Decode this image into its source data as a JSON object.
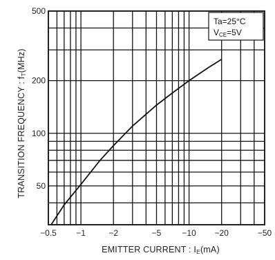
{
  "chart_data": {
    "type": "line",
    "xscale": "log",
    "yscale": "log",
    "xlim": [
      -0.5,
      -50
    ],
    "ylim": [
      30,
      500
    ],
    "xlabel": "EMITTER  CURRENT : I",
    "xlabel_sub": "E",
    "xlabel_unit": "(mA)",
    "ylabel": "TRANSITION  FREQUENCY : f",
    "ylabel_sub": "T",
    "ylabel_unit": "(MHz)",
    "x_ticks": [
      {
        "value": -0.5,
        "label": "−0.5"
      },
      {
        "value": -1,
        "label": "−1"
      },
      {
        "value": -2,
        "label": "−2"
      },
      {
        "value": -5,
        "label": "−5"
      },
      {
        "value": -10,
        "label": "−10"
      },
      {
        "value": -20,
        "label": "−20"
      },
      {
        "value": -50,
        "label": "−50"
      }
    ],
    "y_ticks": [
      {
        "value": 50,
        "label": "50"
      },
      {
        "value": 100,
        "label": "100"
      },
      {
        "value": 200,
        "label": "200"
      },
      {
        "value": 500,
        "label": "500"
      }
    ],
    "x_grid": [
      -0.5,
      -0.6,
      -0.7,
      -0.8,
      -0.9,
      -1,
      -2,
      -3,
      -4,
      -5,
      -6,
      -7,
      -8,
      -9,
      -10,
      -20,
      -30,
      -40,
      -50
    ],
    "y_grid": [
      30,
      40,
      50,
      60,
      70,
      80,
      90,
      100,
      200,
      300,
      400,
      500
    ],
    "annotation": {
      "line1": "Ta=25°C",
      "line2_pre": "V",
      "line2_sub": "CE",
      "line2_post": "=5V"
    },
    "series": [
      {
        "x": [
          -0.53,
          -0.7,
          -1,
          -1.5,
          -2,
          -3,
          -5,
          -7,
          -10,
          -15,
          -20
        ],
        "y": [
          30,
          39,
          51,
          70,
          85,
          110,
          145,
          170,
          200,
          237,
          265
        ]
      }
    ]
  }
}
